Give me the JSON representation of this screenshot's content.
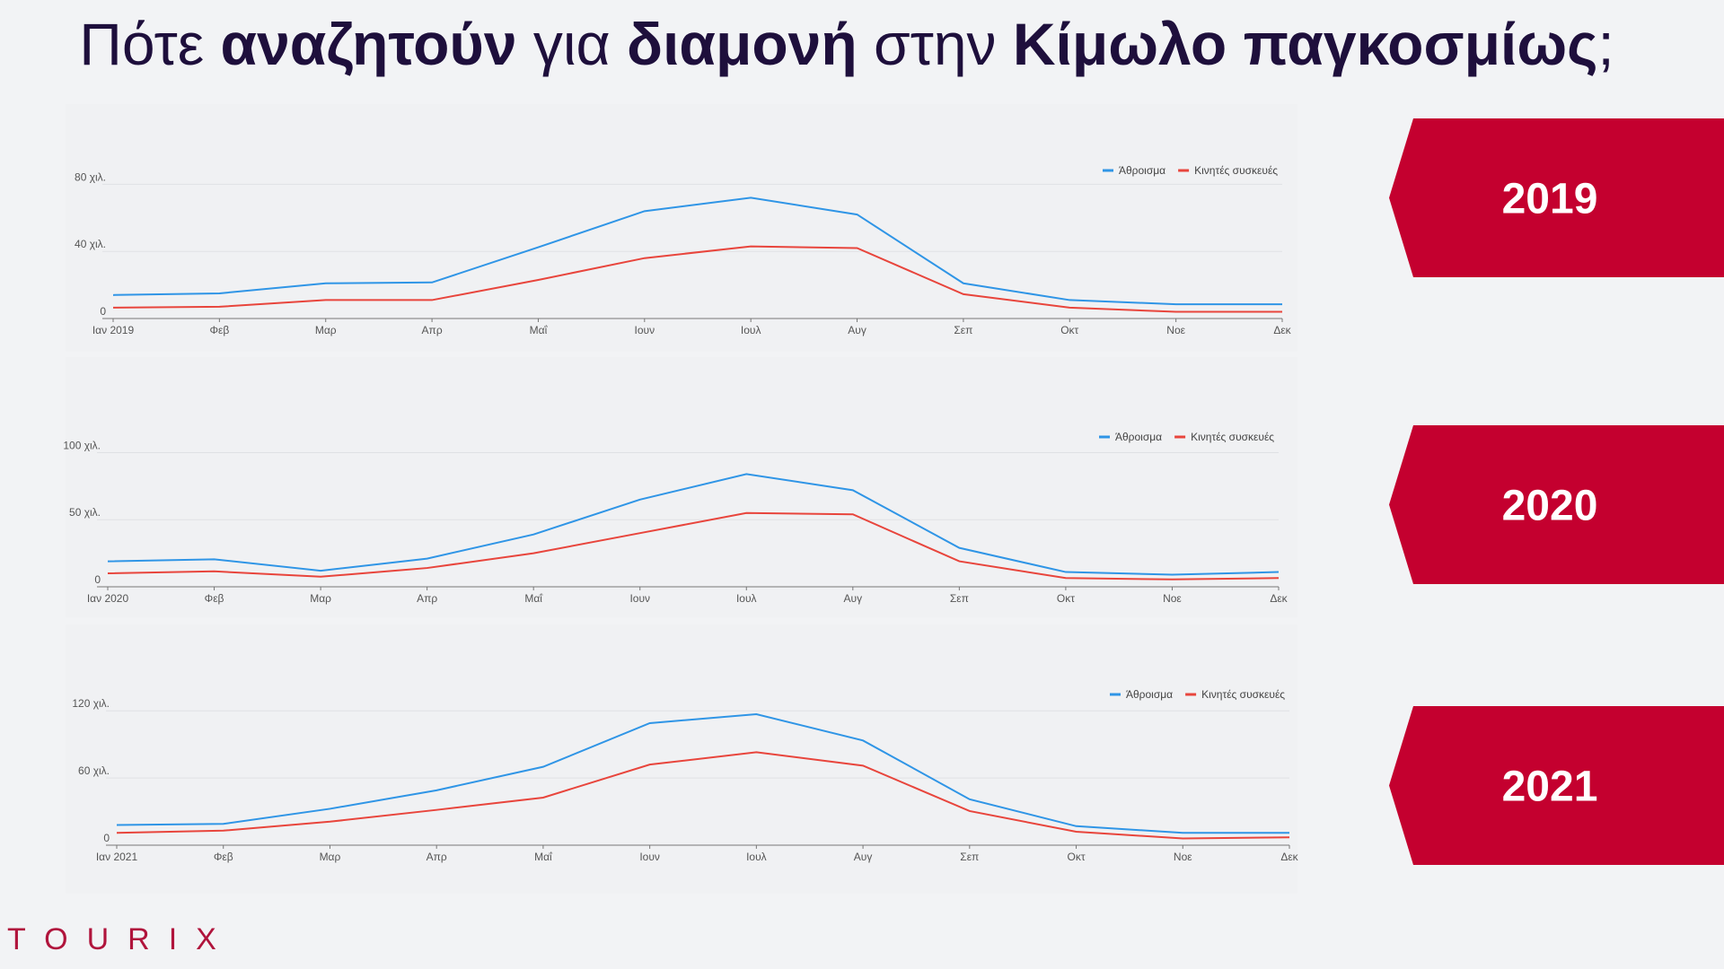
{
  "title": {
    "parts": [
      {
        "text": "Πότε ",
        "bold": false
      },
      {
        "text": "αναζητούν",
        "bold": true
      },
      {
        "text": " για ",
        "bold": false
      },
      {
        "text": "διαμονή",
        "bold": true
      },
      {
        "text": " στην ",
        "bold": false
      },
      {
        "text": "Κίμωλο παγκοσμίως",
        "bold": true
      },
      {
        "text": ";",
        "bold": false
      }
    ]
  },
  "year_tags": [
    "2019",
    "2020",
    "2021"
  ],
  "logo": "TOURIX",
  "chart_data": [
    {
      "type": "line",
      "categories": [
        "Ιαν 2019",
        "Φεβ",
        "Μαρ",
        "Απρ",
        "Μαΐ",
        "Ιουν",
        "Ιουλ",
        "Αυγ",
        "Σεπ",
        "Οκτ",
        "Νοε",
        "Δεκ"
      ],
      "series": [
        {
          "name": "Άθροισμα",
          "color": "#2f95e6",
          "values": [
            14000,
            15000,
            21000,
            21500,
            42500,
            64000,
            72000,
            62000,
            21000,
            11000,
            8500,
            8500
          ]
        },
        {
          "name": "Κινητές συσκευές",
          "color": "#e8453c",
          "values": [
            6500,
            7000,
            11000,
            11000,
            23000,
            36000,
            43000,
            42000,
            14500,
            6500,
            4000,
            4000
          ]
        }
      ],
      "ylim": [
        0,
        92000
      ],
      "yticks": [
        0,
        {
          "value": 40000,
          "label": "40 χιλ."
        },
        {
          "value": 80000,
          "label": "80 χιλ."
        }
      ],
      "grid": true,
      "legend": "top-right"
    },
    {
      "type": "line",
      "categories": [
        "Ιαν 2020",
        "Φεβ",
        "Μαρ",
        "Απρ",
        "Μαΐ",
        "Ιουν",
        "Ιουλ",
        "Αυγ",
        "Σεπ",
        "Οκτ",
        "Νοε",
        "Δεκ"
      ],
      "series": [
        {
          "name": "Άθροισμα",
          "color": "#2f95e6",
          "values": [
            19000,
            20500,
            12000,
            21000,
            39000,
            65000,
            84000,
            72000,
            29000,
            11000,
            9000,
            11000
          ]
        },
        {
          "name": "Κινητές συσκευές",
          "color": "#e8453c",
          "values": [
            10000,
            11500,
            7500,
            14000,
            25000,
            40000,
            55000,
            54000,
            19000,
            6500,
            5500,
            6500
          ]
        }
      ],
      "ylim": [
        0,
        105000
      ],
      "yticks": [
        0,
        {
          "value": 50000,
          "label": "50 χιλ."
        },
        {
          "value": 100000,
          "label": "100 χιλ."
        }
      ],
      "grid": true,
      "legend": "top-right"
    },
    {
      "type": "line",
      "categories": [
        "Ιαν 2021",
        "Φεβ",
        "Μαρ",
        "Απρ",
        "Μαΐ",
        "Ιουν",
        "Ιουλ",
        "Αυγ",
        "Σεπ",
        "Οκτ",
        "Νοε",
        "Δεκ"
      ],
      "series": [
        {
          "name": "Άθροισμα",
          "color": "#2f95e6",
          "values": [
            18000,
            19000,
            32500,
            49000,
            70000,
            109000,
            117000,
            93500,
            41000,
            17000,
            11000,
            11000
          ]
        },
        {
          "name": "Κινητές συσκευές",
          "color": "#e8453c",
          "values": [
            11000,
            13000,
            21000,
            31500,
            42500,
            72000,
            83000,
            71000,
            30500,
            12000,
            6000,
            7000
          ]
        }
      ],
      "ylim": [
        0,
        125000
      ],
      "yticks": [
        0,
        {
          "value": 60000,
          "label": "60 χιλ."
        },
        {
          "value": 120000,
          "label": "120 χιλ."
        }
      ],
      "grid": true,
      "legend": "top-right"
    }
  ]
}
